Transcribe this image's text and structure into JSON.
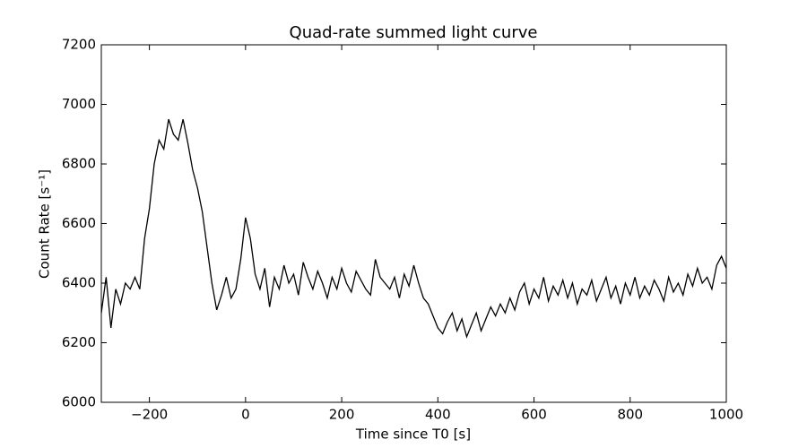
{
  "chart_data": {
    "type": "line",
    "title": "Quad-rate summed light curve",
    "x_label": "Time since T0 [s]",
    "y_label": "Count Rate [s⁻¹]",
    "x": [
      -300,
      -290,
      -280,
      -270,
      -260,
      -250,
      -240,
      -230,
      -220,
      -210,
      -200,
      -190,
      -180,
      -170,
      -160,
      -150,
      -140,
      -130,
      -120,
      -110,
      -100,
      -90,
      -80,
      -70,
      -60,
      -50,
      -40,
      -30,
      -20,
      -10,
      0,
      10,
      20,
      30,
      40,
      50,
      60,
      70,
      80,
      90,
      100,
      110,
      120,
      130,
      140,
      150,
      160,
      170,
      180,
      190,
      200,
      210,
      220,
      230,
      240,
      250,
      260,
      270,
      280,
      290,
      300,
      310,
      320,
      330,
      340,
      350,
      360,
      370,
      380,
      390,
      400,
      410,
      420,
      430,
      440,
      450,
      460,
      470,
      480,
      490,
      500,
      510,
      520,
      530,
      540,
      550,
      560,
      570,
      580,
      590,
      600,
      610,
      620,
      630,
      640,
      650,
      660,
      670,
      680,
      690,
      700,
      710,
      720,
      730,
      740,
      750,
      760,
      770,
      780,
      790,
      800,
      810,
      820,
      830,
      840,
      850,
      860,
      870,
      880,
      890,
      900,
      910,
      920,
      930,
      940,
      950,
      960,
      970,
      980,
      990,
      1000
    ],
    "values": [
      6300,
      6420,
      6250,
      6380,
      6330,
      6400,
      6380,
      6420,
      6380,
      6550,
      6650,
      6800,
      6880,
      6850,
      6950,
      6900,
      6880,
      6950,
      6870,
      6780,
      6720,
      6640,
      6520,
      6400,
      6310,
      6360,
      6420,
      6350,
      6380,
      6480,
      6620,
      6550,
      6430,
      6380,
      6450,
      6320,
      6420,
      6380,
      6460,
      6400,
      6430,
      6360,
      6470,
      6420,
      6380,
      6440,
      6400,
      6350,
      6420,
      6380,
      6450,
      6400,
      6370,
      6440,
      6410,
      6380,
      6360,
      6480,
      6420,
      6400,
      6380,
      6420,
      6350,
      6430,
      6390,
      6460,
      6400,
      6350,
      6330,
      6290,
      6250,
      6230,
      6270,
      6300,
      6240,
      6280,
      6220,
      6260,
      6300,
      6240,
      6280,
      6320,
      6290,
      6330,
      6300,
      6350,
      6310,
      6370,
      6400,
      6330,
      6380,
      6350,
      6420,
      6340,
      6390,
      6360,
      6410,
      6350,
      6400,
      6330,
      6380,
      6360,
      6410,
      6340,
      6380,
      6420,
      6350,
      6390,
      6330,
      6400,
      6360,
      6420,
      6350,
      6390,
      6360,
      6410,
      6380,
      6340,
      6420,
      6370,
      6400,
      6360,
      6430,
      6390,
      6450,
      6400,
      6420,
      6380,
      6460,
      6490,
      6450
    ],
    "color": "#000000",
    "xlim": [
      -300,
      1000
    ],
    "xticks": [
      {
        "value": -200,
        "label": "−200"
      },
      0,
      200,
      400,
      600,
      800,
      1000
    ],
    "ylim": [
      6000,
      7200
    ],
    "yticks": [
      6000,
      6200,
      6400,
      6600,
      6800,
      7000,
      7200
    ]
  }
}
